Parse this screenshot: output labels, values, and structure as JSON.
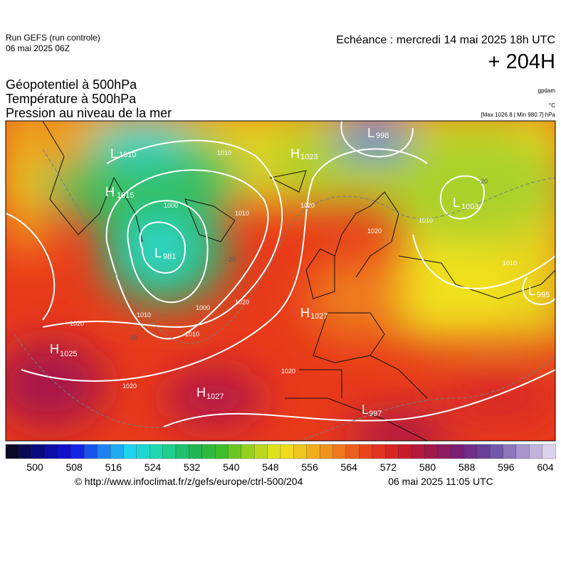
{
  "header": {
    "run": "Run GEFS (run controle)",
    "run_date": "06 mai 2025 06Z",
    "valid": "Echéance : mercredi 14 mai 2025 18h UTC",
    "lead": "+ 204H",
    "fields": [
      "Géopotentiel à 500hPa",
      "Température à 500hPa",
      "Pression au niveau de la mer"
    ],
    "units": [
      "gpdam",
      "°C",
      "[Max 1026.8 | Min 980.7] hPa"
    ]
  },
  "map": {
    "systems": [
      {
        "type": "L",
        "value": 1010
      },
      {
        "type": "H",
        "value": 1023
      },
      {
        "type": "L",
        "value": 998
      },
      {
        "type": "H",
        "value": 1015
      },
      {
        "type": "L",
        "value": 1003
      },
      {
        "type": "L",
        "value": 981
      },
      {
        "type": "H",
        "value": 1027
      },
      {
        "type": "L",
        "value": 995
      },
      {
        "type": "H",
        "value": 1025
      },
      {
        "type": "H",
        "value": 1027
      },
      {
        "type": "L",
        "value": 997
      }
    ],
    "contour_labels": [
      1010,
      1000,
      1010,
      1020,
      1020,
      1010,
      1000,
      1020,
      1010,
      1020,
      1020,
      1020,
      1010,
      1010,
      -20,
      -20,
      -20
    ]
  },
  "colorbar": {
    "ticks": [
      500,
      508,
      516,
      524,
      532,
      540,
      548,
      556,
      564,
      572,
      580,
      588,
      596,
      604
    ]
  },
  "footer": {
    "source": "© http://www.infoclimat.fr/z/gefs/europe/ctrl-500/204",
    "created": "06 mai 2025 11:05 UTC"
  }
}
